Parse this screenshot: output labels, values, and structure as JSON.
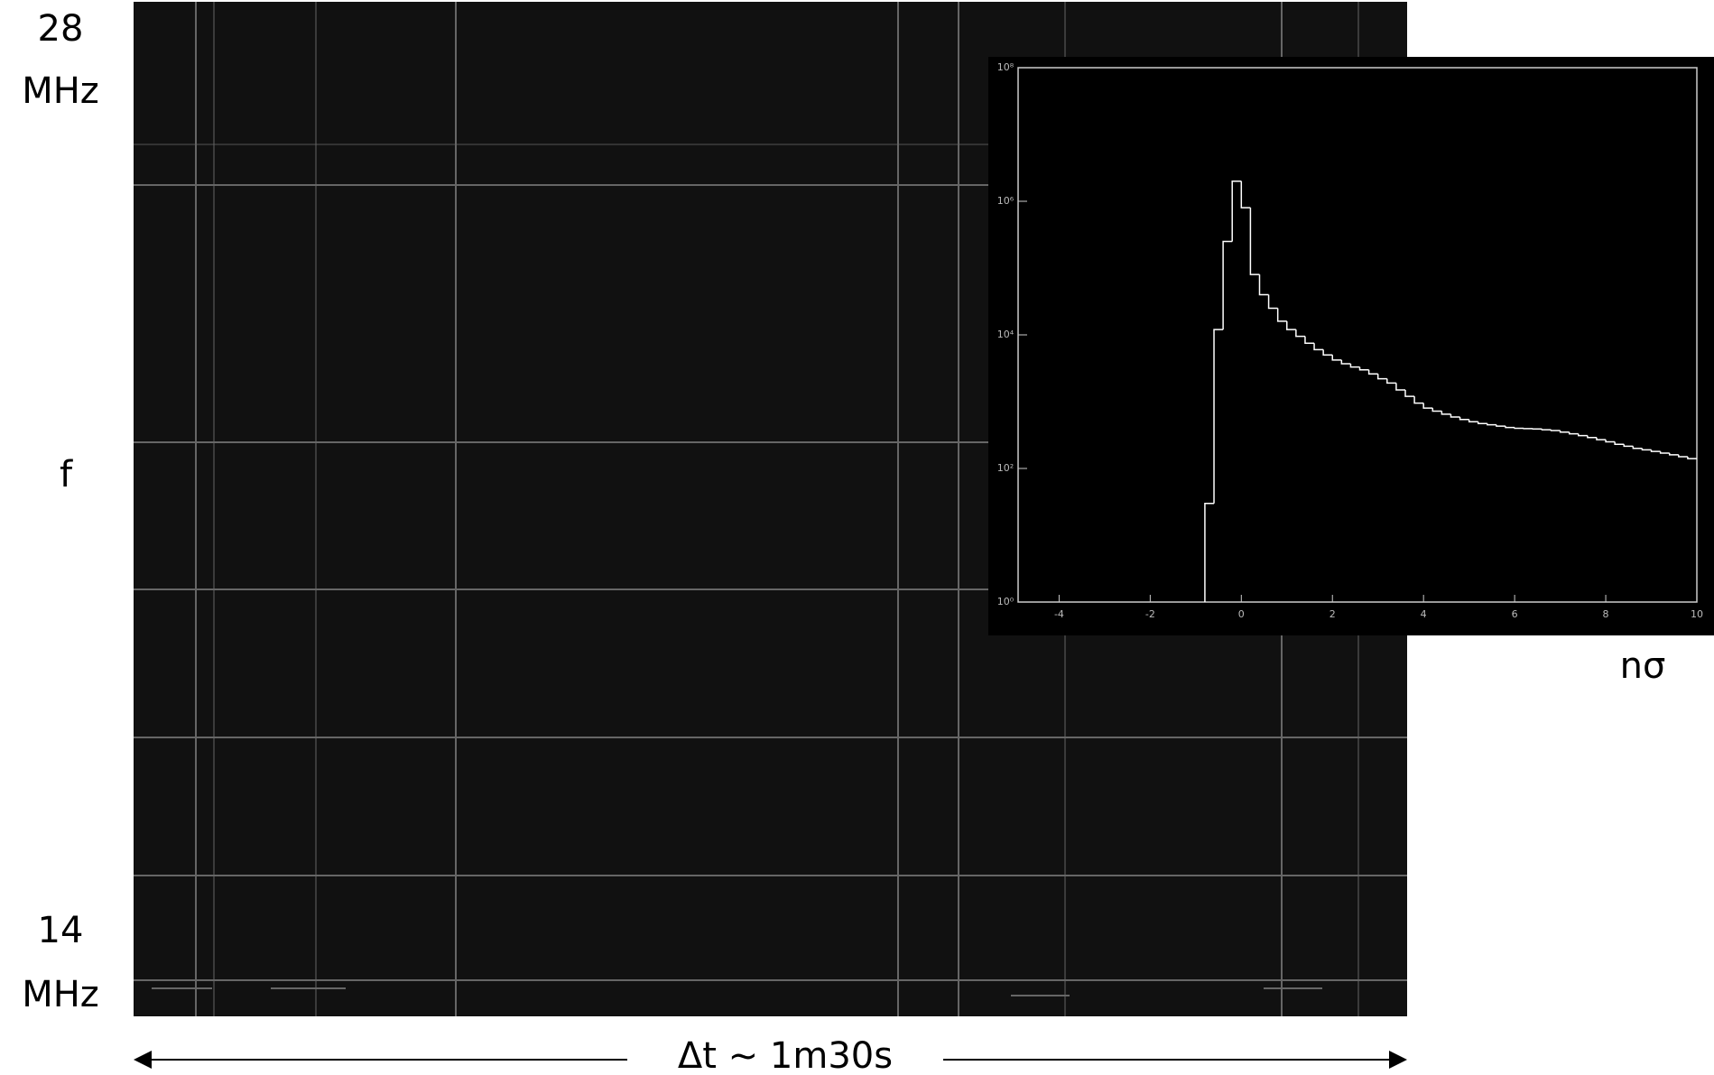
{
  "labels": {
    "top_value": "28",
    "top_unit": "MHz",
    "axis": "f",
    "bottom_value": "14",
    "bottom_unit": "MHz",
    "duration": "Δt ~ 1m30s"
  },
  "chart_data": {
    "type": "histogram",
    "x_label": "nσ",
    "bins": [
      -0.8,
      -0.6,
      -0.4,
      -0.2,
      0,
      0.2,
      0.4,
      0.6,
      0.8,
      1,
      1.2,
      1.4,
      1.6,
      1.8,
      2,
      2.2,
      2.4,
      2.6,
      2.8,
      3,
      3.2,
      3.4,
      3.6,
      3.8,
      4,
      4.2,
      4.4,
      4.6,
      4.8,
      5,
      5.2,
      5.4,
      5.6,
      5.8,
      6,
      6.2,
      6.4,
      6.6,
      6.8,
      7,
      7.2,
      7.4,
      7.6,
      7.8,
      8,
      8.2,
      8.4,
      8.6,
      8.8,
      9,
      9.2,
      9.4,
      9.6,
      9.8,
      10
    ],
    "values": [
      30,
      12000,
      250000,
      2000000,
      800000,
      80000,
      40000,
      25000,
      16000,
      12000,
      9500,
      7500,
      6000,
      5000,
      4200,
      3700,
      3300,
      3000,
      2600,
      2200,
      1900,
      1500,
      1200,
      950,
      800,
      720,
      650,
      590,
      540,
      500,
      470,
      450,
      430,
      410,
      400,
      395,
      390,
      380,
      370,
      350,
      330,
      310,
      290,
      270,
      250,
      230,
      215,
      200,
      190,
      180,
      170,
      160,
      150,
      140
    ],
    "color": "#ffffff",
    "xlim": [
      -4.9,
      10
    ],
    "xticks": [
      -4,
      -2,
      0,
      2,
      4,
      6,
      8,
      10
    ],
    "ylim": [
      1,
      100000000
    ],
    "log_y": true,
    "yticks": [
      {
        "value": 1,
        "label": "10⁰"
      },
      {
        "value": 100,
        "label": "10²"
      },
      {
        "value": 10000,
        "label": "10⁴"
      },
      {
        "value": 1000000,
        "label": "10⁶"
      },
      {
        "value": 100000000,
        "label": "10⁸"
      }
    ]
  }
}
